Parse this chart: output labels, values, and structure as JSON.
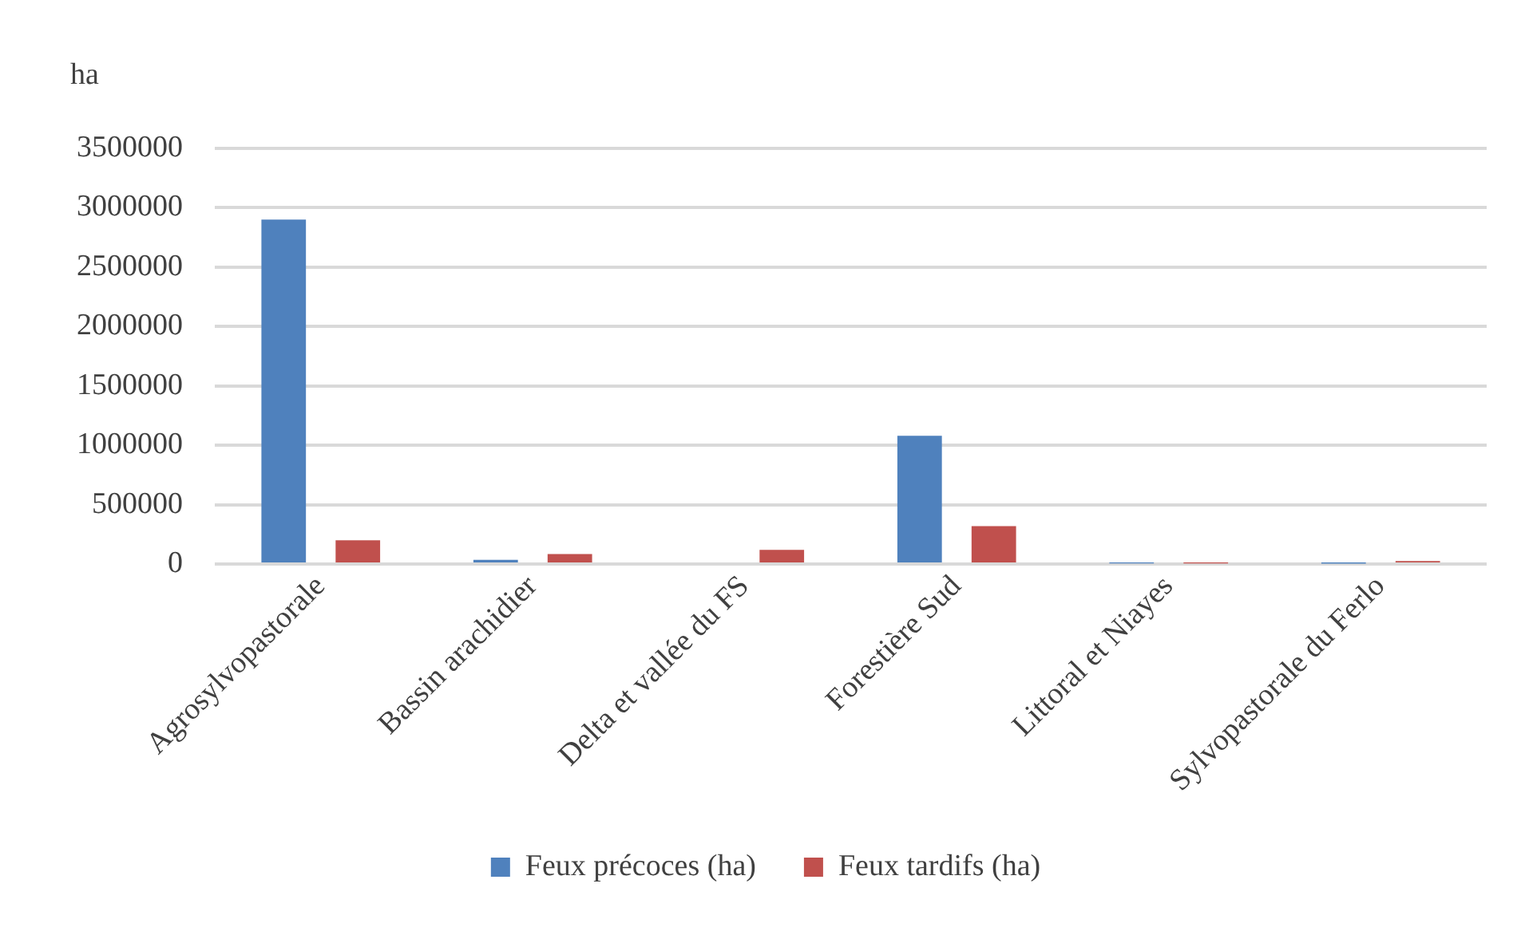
{
  "chart_data": {
    "type": "bar",
    "ylabel": "ha",
    "categories": [
      "Agrosylvopastorale",
      "Bassin arachidier",
      "Delta et vallée du FS",
      "Forestière Sud",
      "Littoral et Niayes",
      "Sylvopastorale du Ferlo"
    ],
    "series": [
      {
        "name": "Feux précoces (ha)",
        "color": "#4f81bd",
        "values": [
          2900000,
          35000,
          0,
          1080000,
          5000,
          3000
        ]
      },
      {
        "name": "Feux tardifs (ha)",
        "color": "#c0504d",
        "values": [
          200000,
          85000,
          120000,
          320000,
          5000,
          25000
        ]
      }
    ],
    "ylim": [
      0,
      3500000
    ],
    "yticks": [
      0,
      500000,
      1000000,
      1500000,
      2000000,
      2500000,
      3000000,
      3500000
    ],
    "grid": "y",
    "legend": "bottom"
  }
}
